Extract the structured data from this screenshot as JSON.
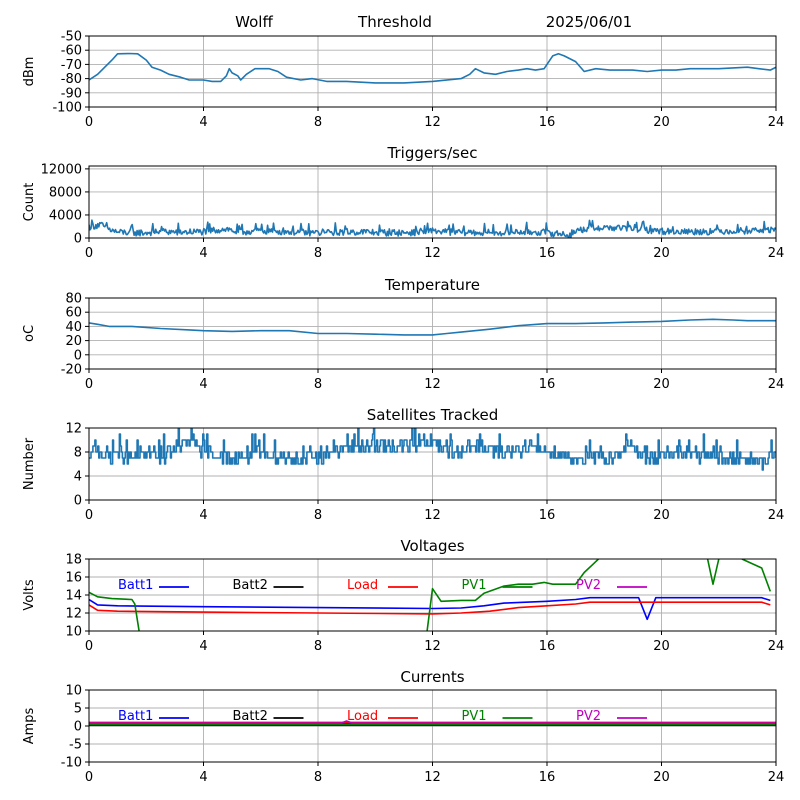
{
  "header": {
    "station": "Wolff",
    "threshold": "Threshold",
    "date": "2025/06/01"
  },
  "chart_data": [
    {
      "type": "line",
      "title": "",
      "ylabel": "dBm",
      "xlim": [
        0,
        24
      ],
      "xticks": [
        0,
        4,
        8,
        12,
        16,
        20,
        24
      ],
      "ylim": [
        -100,
        -50
      ],
      "yticks": [
        -100,
        -90,
        -80,
        -70,
        -60,
        -50
      ],
      "grid": true,
      "series": [
        {
          "color": "#1f77b4",
          "noise": 0,
          "points": [
            [
              0,
              -81
            ],
            [
              0.3,
              -77
            ],
            [
              0.8,
              -67
            ],
            [
              1.0,
              -62.5
            ],
            [
              1.4,
              -62.3
            ],
            [
              1.7,
              -62.5
            ],
            [
              2.0,
              -67
            ],
            [
              2.2,
              -72
            ],
            [
              2.5,
              -74
            ],
            [
              2.8,
              -77
            ],
            [
              3.2,
              -79
            ],
            [
              3.5,
              -81
            ],
            [
              4.0,
              -81
            ],
            [
              4.3,
              -82
            ],
            [
              4.6,
              -82
            ],
            [
              4.8,
              -78
            ],
            [
              4.9,
              -73
            ],
            [
              5.0,
              -76
            ],
            [
              5.2,
              -78
            ],
            [
              5.3,
              -81
            ],
            [
              5.5,
              -77
            ],
            [
              5.8,
              -73
            ],
            [
              6.3,
              -73
            ],
            [
              6.6,
              -75
            ],
            [
              6.9,
              -79
            ],
            [
              7.4,
              -81
            ],
            [
              7.8,
              -80
            ],
            [
              8.3,
              -82
            ],
            [
              9.0,
              -82
            ],
            [
              10.0,
              -83
            ],
            [
              11.0,
              -83
            ],
            [
              12.0,
              -82
            ],
            [
              13.0,
              -80
            ],
            [
              13.3,
              -77
            ],
            [
              13.5,
              -73
            ],
            [
              13.8,
              -76
            ],
            [
              14.2,
              -77
            ],
            [
              14.6,
              -75
            ],
            [
              15.0,
              -74
            ],
            [
              15.3,
              -73
            ],
            [
              15.6,
              -74
            ],
            [
              15.9,
              -73
            ],
            [
              16.2,
              -64
            ],
            [
              16.4,
              -62.5
            ],
            [
              16.6,
              -64
            ],
            [
              17.0,
              -68
            ],
            [
              17.3,
              -75
            ],
            [
              17.7,
              -73
            ],
            [
              18.2,
              -74
            ],
            [
              19.0,
              -74
            ],
            [
              19.5,
              -75
            ],
            [
              20.0,
              -74
            ],
            [
              20.5,
              -74
            ],
            [
              21.0,
              -73
            ],
            [
              22.0,
              -73
            ],
            [
              23.0,
              -72
            ],
            [
              23.4,
              -73
            ],
            [
              23.8,
              -74
            ],
            [
              24.0,
              -72
            ]
          ]
        }
      ]
    },
    {
      "type": "line",
      "title": "Triggers/sec",
      "ylabel": "Count",
      "xlim": [
        0,
        24
      ],
      "xticks": [
        0,
        4,
        8,
        12,
        16,
        20,
        24
      ],
      "ylim": [
        0,
        12500
      ],
      "yticks": [
        0,
        4000,
        8000,
        12000
      ],
      "ytick_labels": [
        "0",
        "4000",
        "8000",
        "12000"
      ],
      "grid": true,
      "series": [
        {
          "color": "#1f77b4",
          "noise": 600,
          "points": [
            [
              0,
              2000
            ],
            [
              0.4,
              2300
            ],
            [
              0.7,
              1500
            ],
            [
              1.0,
              1000
            ],
            [
              2.0,
              900
            ],
            [
              2.5,
              1200
            ],
            [
              3.0,
              1000
            ],
            [
              4.0,
              1100
            ],
            [
              4.8,
              1600
            ],
            [
              5.2,
              1000
            ],
            [
              6.0,
              1300
            ],
            [
              7.0,
              1100
            ],
            [
              8.0,
              900
            ],
            [
              9.0,
              1100
            ],
            [
              10.0,
              1000
            ],
            [
              11.0,
              900
            ],
            [
              12.0,
              1200
            ],
            [
              13.0,
              1000
            ],
            [
              14.0,
              900
            ],
            [
              15.0,
              1100
            ],
            [
              16.0,
              1000
            ],
            [
              16.8,
              500
            ],
            [
              17.0,
              1200
            ],
            [
              17.5,
              1800
            ],
            [
              18.0,
              1800
            ],
            [
              19.0,
              1700
            ],
            [
              20.0,
              1200
            ],
            [
              21.0,
              1100
            ],
            [
              22.0,
              1200
            ],
            [
              23.0,
              1300
            ],
            [
              24.0,
              1500
            ]
          ]
        }
      ]
    },
    {
      "type": "line",
      "title": "Temperature",
      "ylabel": "oC",
      "xlim": [
        0,
        24
      ],
      "xticks": [
        0,
        4,
        8,
        12,
        16,
        20,
        24
      ],
      "ylim": [
        -20,
        80
      ],
      "yticks": [
        -20,
        0,
        20,
        40,
        60,
        80
      ],
      "grid": true,
      "series": [
        {
          "color": "#1f77b4",
          "noise": 0,
          "points": [
            [
              0,
              45
            ],
            [
              0.3,
              43
            ],
            [
              0.7,
              40
            ],
            [
              1.5,
              40
            ],
            [
              2.5,
              37
            ],
            [
              3.5,
              35
            ],
            [
              4.0,
              34
            ],
            [
              5.0,
              33
            ],
            [
              6.0,
              34
            ],
            [
              7.0,
              34
            ],
            [
              8.0,
              30
            ],
            [
              9.0,
              30
            ],
            [
              10.0,
              29
            ],
            [
              11.0,
              28
            ],
            [
              12.0,
              28
            ],
            [
              12.5,
              30
            ],
            [
              13.0,
              32
            ],
            [
              14.0,
              36
            ],
            [
              15.0,
              41
            ],
            [
              16.0,
              44
            ],
            [
              17.0,
              44
            ],
            [
              18.0,
              45
            ],
            [
              19.0,
              46
            ],
            [
              20.0,
              47
            ],
            [
              21.0,
              49
            ],
            [
              21.8,
              50
            ],
            [
              22.5,
              49
            ],
            [
              23.0,
              48
            ],
            [
              24.0,
              48
            ]
          ]
        }
      ]
    },
    {
      "type": "line",
      "title": "Satellites Tracked",
      "ylabel": "Number",
      "xlim": [
        0,
        24
      ],
      "xticks": [
        0,
        4,
        8,
        12,
        16,
        20,
        24
      ],
      "ylim": [
        0,
        12
      ],
      "yticks": [
        0,
        4,
        8,
        12
      ],
      "grid": true,
      "series": [
        {
          "color": "#1f77b4",
          "noise": 1.2,
          "step": true,
          "points": [
            [
              0,
              6
            ],
            [
              0.2,
              9
            ],
            [
              0.6,
              7
            ],
            [
              1.0,
              8
            ],
            [
              1.5,
              7
            ],
            [
              2.2,
              8
            ],
            [
              2.5,
              7
            ],
            [
              3.0,
              9
            ],
            [
              3.6,
              10
            ],
            [
              4.0,
              8
            ],
            [
              5.0,
              7
            ],
            [
              6.0,
              8
            ],
            [
              7.0,
              7
            ],
            [
              8.0,
              7
            ],
            [
              9.0,
              9
            ],
            [
              10.0,
              9
            ],
            [
              11.0,
              9
            ],
            [
              11.8,
              10
            ],
            [
              12.5,
              8
            ],
            [
              13.5,
              9
            ],
            [
              14.5,
              8
            ],
            [
              15.5,
              9
            ],
            [
              16.0,
              8
            ],
            [
              17.0,
              7
            ],
            [
              18.0,
              7
            ],
            [
              19.0,
              9
            ],
            [
              19.6,
              7
            ],
            [
              20.0,
              7
            ],
            [
              21.0,
              8
            ],
            [
              22.0,
              7
            ],
            [
              23.0,
              7
            ],
            [
              23.5,
              6
            ],
            [
              24.0,
              8
            ]
          ]
        }
      ]
    },
    {
      "type": "line",
      "title": "Voltages",
      "ylabel": "Volts",
      "xlim": [
        0,
        24
      ],
      "xticks": [
        0,
        4,
        8,
        12,
        16,
        20,
        24
      ],
      "ylim": [
        10,
        18
      ],
      "yticks": [
        10,
        12,
        14,
        16,
        18
      ],
      "grid": true,
      "legend": "top, single row",
      "series": [
        {
          "name": "Batt1",
          "color": "#0000ff",
          "noise": 0,
          "points": [
            [
              0,
              13.5
            ],
            [
              0.3,
              12.9
            ],
            [
              1,
              12.8
            ],
            [
              4,
              12.7
            ],
            [
              8,
              12.6
            ],
            [
              12,
              12.5
            ],
            [
              13,
              12.55
            ],
            [
              13.8,
              12.8
            ],
            [
              14.5,
              13.1
            ],
            [
              16,
              13.3
            ],
            [
              17,
              13.5
            ],
            [
              17.5,
              13.7
            ],
            [
              19.2,
              13.7
            ],
            [
              19.5,
              11.3
            ],
            [
              19.8,
              13.7
            ],
            [
              23.5,
              13.7
            ],
            [
              23.8,
              13.4
            ]
          ]
        },
        {
          "name": "Batt2",
          "color": "#000000",
          "noise": 0,
          "points": []
        },
        {
          "name": "Load",
          "color": "#ff0000",
          "noise": 0,
          "points": [
            [
              0,
              12.9
            ],
            [
              0.3,
              12.3
            ],
            [
              1,
              12.2
            ],
            [
              4,
              12.1
            ],
            [
              8,
              12.0
            ],
            [
              12,
              11.9
            ],
            [
              13,
              12.0
            ],
            [
              14,
              12.2
            ],
            [
              15,
              12.6
            ],
            [
              16,
              12.8
            ],
            [
              17,
              13.0
            ],
            [
              17.5,
              13.2
            ],
            [
              20,
              13.2
            ],
            [
              22,
              13.2
            ],
            [
              23.5,
              13.2
            ],
            [
              23.8,
              12.9
            ]
          ]
        },
        {
          "name": "PV1",
          "color": "#008000",
          "noise": 0,
          "points": [
            [
              0,
              14.3
            ],
            [
              0.3,
              13.8
            ],
            [
              0.8,
              13.6
            ],
            [
              1.5,
              13.5
            ],
            [
              1.6,
              13.0
            ],
            [
              1.75,
              10.0
            ],
            [
              1.76,
              null
            ],
            [
              11.8,
              null
            ],
            [
              11.81,
              10.0
            ],
            [
              12.0,
              14.7
            ],
            [
              12.3,
              13.3
            ],
            [
              13.0,
              13.4
            ],
            [
              13.5,
              13.4
            ],
            [
              13.8,
              14.2
            ],
            [
              14.5,
              15.0
            ],
            [
              15.0,
              15.2
            ],
            [
              15.5,
              15.2
            ],
            [
              15.9,
              15.4
            ],
            [
              16.2,
              15.2
            ],
            [
              17.0,
              15.2
            ],
            [
              17.3,
              16.5
            ],
            [
              17.6,
              17.4
            ],
            [
              17.8,
              18.0
            ],
            [
              17.81,
              null
            ],
            [
              21.6,
              null
            ],
            [
              21.61,
              18.0
            ],
            [
              21.8,
              15.2
            ],
            [
              22.0,
              18.0
            ],
            [
              22.01,
              null
            ],
            [
              22.8,
              null
            ],
            [
              22.81,
              18.0
            ],
            [
              23.5,
              17.0
            ],
            [
              23.8,
              14.4
            ]
          ]
        },
        {
          "name": "PV2",
          "color": "#c000c0",
          "noise": 0,
          "points": []
        }
      ]
    },
    {
      "type": "line",
      "title": "Currents",
      "ylabel": "Amps",
      "xlim": [
        0,
        24
      ],
      "xticks": [
        0,
        4,
        8,
        12,
        16,
        20,
        24
      ],
      "ylim": [
        -10,
        10
      ],
      "yticks": [
        -10,
        -5,
        0,
        5,
        10
      ],
      "grid": true,
      "legend": "top, single row",
      "series": [
        {
          "name": "Batt1",
          "color": "#0000ff",
          "noise": 0,
          "points": [
            [
              0,
              0.6
            ],
            [
              24,
              0.6
            ]
          ]
        },
        {
          "name": "Batt2",
          "color": "#000000",
          "noise": 0,
          "points": [
            [
              0,
              0.2
            ],
            [
              24,
              0.2
            ]
          ]
        },
        {
          "name": "Load",
          "color": "#ff0000",
          "noise": 0,
          "points": [
            [
              0,
              1.0
            ],
            [
              24,
              1.0
            ]
          ]
        },
        {
          "name": "PV1",
          "color": "#008000",
          "noise": 0,
          "points": [
            [
              0,
              0.4
            ],
            [
              24,
              0.4
            ]
          ]
        },
        {
          "name": "PV2",
          "color": "#c000c0",
          "noise": 0,
          "points": [
            [
              0,
              0.8
            ],
            [
              8.8,
              0.8
            ],
            [
              9.0,
              1.4
            ],
            [
              9.2,
              0.8
            ],
            [
              24,
              0.8
            ]
          ]
        }
      ]
    }
  ]
}
